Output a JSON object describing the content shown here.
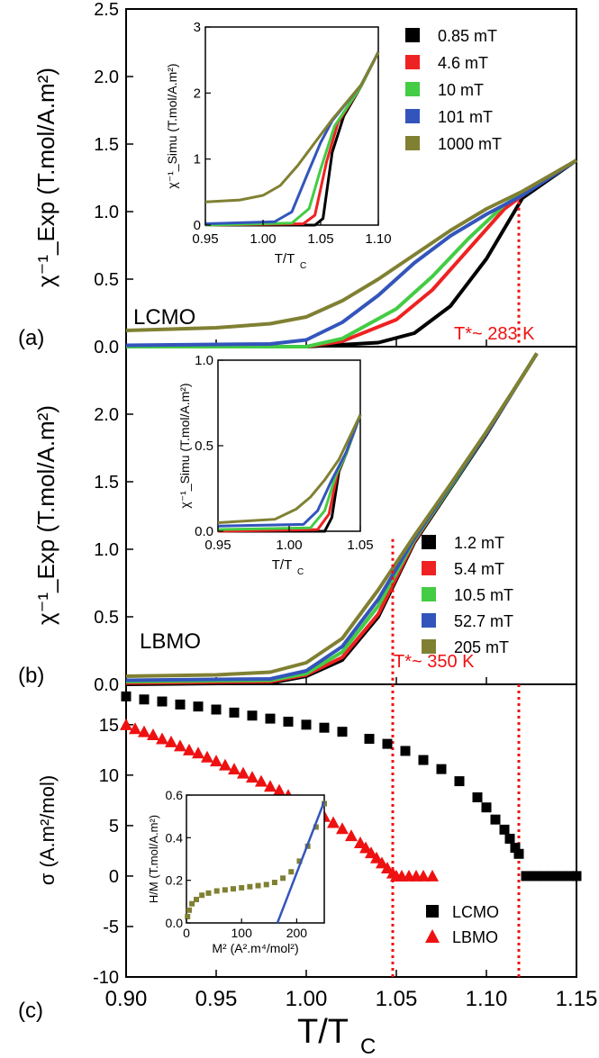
{
  "figure": {
    "x_title": "T/T",
    "x_title_sub": "C",
    "x_ticks": [
      "0.90",
      "0.95",
      "1.00",
      "1.05",
      "1.10",
      "1.15"
    ]
  },
  "chart_data": [
    {
      "id": "panel_a",
      "type": "line",
      "panel_label": "(a)",
      "material": "LCMO",
      "ylabel": "χ⁻¹_Exp (T.mol/A.m²)",
      "xlim": [
        0.9,
        1.15
      ],
      "ylim": [
        0.0,
        2.5
      ],
      "y_ticks": [
        "0.0",
        "0.5",
        "1.0",
        "1.5",
        "2.0",
        "2.5"
      ],
      "annotation": "T*~ 283 K",
      "marker_x": 1.118,
      "series": [
        {
          "name": "0.85 mT",
          "color": "#000000",
          "x": [
            0.9,
            1.0,
            1.04,
            1.06,
            1.08,
            1.1,
            1.12,
            1.15
          ],
          "y": [
            0.0,
            0.0,
            0.03,
            0.1,
            0.3,
            0.65,
            1.1,
            1.38
          ]
        },
        {
          "name": "4.6 mT",
          "color": "#ee2222",
          "x": [
            0.9,
            1.0,
            1.02,
            1.05,
            1.07,
            1.09,
            1.11,
            1.13,
            1.15
          ],
          "y": [
            0.0,
            0.0,
            0.04,
            0.2,
            0.42,
            0.72,
            1.02,
            1.22,
            1.38
          ]
        },
        {
          "name": "10 mT",
          "color": "#44cc44",
          "x": [
            0.9,
            1.0,
            1.02,
            1.05,
            1.07,
            1.09,
            1.11,
            1.13,
            1.15
          ],
          "y": [
            0.0,
            0.0,
            0.06,
            0.28,
            0.52,
            0.8,
            1.05,
            1.22,
            1.38
          ]
        },
        {
          "name": "101 mT",
          "color": "#3355bb",
          "x": [
            0.9,
            0.98,
            1.0,
            1.02,
            1.04,
            1.06,
            1.08,
            1.1,
            1.12,
            1.15
          ],
          "y": [
            0.01,
            0.02,
            0.05,
            0.18,
            0.38,
            0.62,
            0.82,
            0.98,
            1.12,
            1.38
          ]
        },
        {
          "name": "1000 mT",
          "color": "#808033",
          "x": [
            0.9,
            0.95,
            0.98,
            1.0,
            1.02,
            1.04,
            1.06,
            1.08,
            1.1,
            1.12,
            1.15
          ],
          "y": [
            0.12,
            0.14,
            0.17,
            0.22,
            0.34,
            0.5,
            0.68,
            0.86,
            1.02,
            1.15,
            1.38
          ]
        }
      ],
      "inset": {
        "type": "line",
        "ylabel": "χ⁻¹_Simu (T.mol/A.m²)",
        "xlabel": "T/T",
        "xlabel_sub": "C",
        "xlim": [
          0.95,
          1.1
        ],
        "ylim": [
          0,
          3
        ],
        "x_ticks": [
          "0.95",
          "1.00",
          "1.05",
          "1.10"
        ],
        "y_ticks": [
          "0",
          "1",
          "2",
          "3"
        ],
        "series": [
          {
            "name": "0.85 mT",
            "color": "#000000",
            "x": [
              0.95,
              1.045,
              1.052,
              1.06,
              1.07,
              1.085,
              1.1
            ],
            "y": [
              0.0,
              0.0,
              0.1,
              1.1,
              1.65,
              2.1,
              2.62
            ]
          },
          {
            "name": "4.6 mT",
            "color": "#ee2222",
            "x": [
              0.95,
              1.035,
              1.045,
              1.055,
              1.065,
              1.085,
              1.1
            ],
            "y": [
              0.0,
              0.02,
              0.15,
              0.95,
              1.55,
              2.1,
              2.62
            ]
          },
          {
            "name": "10 mT",
            "color": "#44cc44",
            "x": [
              0.95,
              1.025,
              1.04,
              1.05,
              1.062,
              1.085,
              1.1
            ],
            "y": [
              0.0,
              0.03,
              0.25,
              0.85,
              1.5,
              2.1,
              2.62
            ]
          },
          {
            "name": "101 mT",
            "color": "#3355bb",
            "x": [
              0.95,
              1.01,
              1.025,
              1.038,
              1.05,
              1.06,
              1.085,
              1.1
            ],
            "y": [
              0.02,
              0.05,
              0.2,
              0.75,
              1.25,
              1.58,
              2.12,
              2.62
            ]
          },
          {
            "name": "1000 mT",
            "color": "#808033",
            "x": [
              0.95,
              0.98,
              1.0,
              1.015,
              1.03,
              1.045,
              1.06,
              1.085,
              1.1
            ],
            "y": [
              0.35,
              0.38,
              0.45,
              0.6,
              0.9,
              1.25,
              1.6,
              2.12,
              2.62
            ]
          }
        ]
      }
    },
    {
      "id": "panel_b",
      "type": "line",
      "panel_label": "(b)",
      "material": "LBMO",
      "ylabel": "χ⁻¹_Exp (T.mol/A.m²)",
      "xlim": [
        0.9,
        1.15
      ],
      "ylim": [
        0.0,
        2.5
      ],
      "y_ticks": [
        "0.0",
        "0.5",
        "1.0",
        "1.5",
        "2.0"
      ],
      "annotation": "T*~ 350 K",
      "marker_x": 1.048,
      "series": [
        {
          "name": "1.2 mT",
          "color": "#000000",
          "x": [
            0.9,
            0.98,
            1.0,
            1.02,
            1.04,
            1.06,
            1.08,
            1.1,
            1.12,
            1.128
          ],
          "y": [
            0.0,
            0.01,
            0.06,
            0.18,
            0.5,
            1.05,
            1.45,
            1.85,
            2.28,
            2.45
          ]
        },
        {
          "name": "5.4 mT",
          "color": "#ee2222",
          "x": [
            0.9,
            0.98,
            1.0,
            1.02,
            1.04,
            1.06,
            1.08,
            1.1,
            1.12,
            1.128
          ],
          "y": [
            0.01,
            0.02,
            0.07,
            0.2,
            0.52,
            1.06,
            1.46,
            1.86,
            2.28,
            2.45
          ]
        },
        {
          "name": "10.5 mT",
          "color": "#44cc44",
          "x": [
            0.9,
            0.98,
            1.0,
            1.02,
            1.04,
            1.06,
            1.08,
            1.1,
            1.12,
            1.128
          ],
          "y": [
            0.02,
            0.03,
            0.08,
            0.24,
            0.58,
            1.07,
            1.46,
            1.86,
            2.28,
            2.45
          ]
        },
        {
          "name": "52.7 mT",
          "color": "#3355bb",
          "x": [
            0.9,
            0.98,
            1.0,
            1.02,
            1.04,
            1.06,
            1.08,
            1.1,
            1.12,
            1.128
          ],
          "y": [
            0.03,
            0.04,
            0.1,
            0.28,
            0.63,
            1.08,
            1.47,
            1.86,
            2.28,
            2.45
          ]
        },
        {
          "name": "205 mT",
          "color": "#808033",
          "x": [
            0.9,
            0.95,
            0.98,
            1.0,
            1.02,
            1.04,
            1.06,
            1.08,
            1.1,
            1.12,
            1.128
          ],
          "y": [
            0.06,
            0.07,
            0.09,
            0.16,
            0.34,
            0.7,
            1.1,
            1.48,
            1.87,
            2.28,
            2.45
          ]
        }
      ],
      "inset": {
        "type": "line",
        "ylabel": "χ⁻¹_Simu (T.mol/A.m²)",
        "xlabel": "T/T",
        "xlabel_sub": "C",
        "xlim": [
          0.95,
          1.05
        ],
        "ylim": [
          0.0,
          1.0
        ],
        "x_ticks": [
          "0.95",
          "1.00",
          "1.05"
        ],
        "y_ticks": [
          "0.0",
          "0.5",
          "1.0"
        ],
        "series": [
          {
            "name": "1.2 mT",
            "color": "#000000",
            "x": [
              0.95,
              1.025,
              1.03,
              1.035,
              1.04,
              1.05
            ],
            "y": [
              0.0,
              0.0,
              0.08,
              0.35,
              0.45,
              0.68
            ]
          },
          {
            "name": "5.4 mT",
            "color": "#ee2222",
            "x": [
              0.95,
              1.02,
              1.028,
              1.034,
              1.04,
              1.05
            ],
            "y": [
              0.0,
              0.01,
              0.1,
              0.34,
              0.45,
              0.68
            ]
          },
          {
            "name": "10.5 mT",
            "color": "#44cc44",
            "x": [
              0.95,
              1.015,
              1.025,
              1.033,
              1.04,
              1.05
            ],
            "y": [
              0.01,
              0.02,
              0.12,
              0.33,
              0.45,
              0.68
            ]
          },
          {
            "name": "52.7 mT",
            "color": "#3355bb",
            "x": [
              0.95,
              1.01,
              1.02,
              1.03,
              1.04,
              1.05
            ],
            "y": [
              0.03,
              0.04,
              0.12,
              0.3,
              0.46,
              0.68
            ]
          },
          {
            "name": "205 mT",
            "color": "#808033",
            "x": [
              0.95,
              0.99,
              1.005,
              1.015,
              1.025,
              1.035,
              1.05
            ],
            "y": [
              0.05,
              0.07,
              0.13,
              0.2,
              0.3,
              0.42,
              0.68
            ]
          }
        ]
      }
    },
    {
      "id": "panel_c",
      "type": "scatter",
      "panel_label": "(c)",
      "ylabel": "σ (A.m²/mol)",
      "xlim": [
        0.9,
        1.15
      ],
      "ylim": [
        -10,
        19
      ],
      "y_ticks": [
        "-10",
        "-5",
        "0",
        "5",
        "10",
        "15"
      ],
      "markers_x": [
        1.048,
        1.118
      ],
      "series": [
        {
          "name": "LCMO",
          "marker": "square",
          "color": "#000000",
          "x": [
            0.9,
            0.91,
            0.92,
            0.93,
            0.94,
            0.95,
            0.96,
            0.97,
            0.98,
            0.99,
            1.0,
            1.01,
            1.02,
            1.035,
            1.045,
            1.055,
            1.065,
            1.075,
            1.085,
            1.095,
            1.1,
            1.105,
            1.11,
            1.113,
            1.116,
            1.118,
            1.122,
            1.127,
            1.132,
            1.137,
            1.142,
            1.147,
            1.15
          ],
          "y": [
            17.8,
            17.5,
            17.3,
            17.0,
            16.8,
            16.5,
            16.2,
            15.9,
            15.6,
            15.3,
            15.0,
            14.7,
            14.3,
            13.6,
            13.1,
            12.4,
            11.5,
            10.6,
            9.4,
            7.8,
            6.8,
            5.6,
            4.6,
            3.7,
            2.8,
            2.2,
            0.0,
            0.0,
            0.0,
            0.0,
            0.0,
            0.0,
            0.0
          ]
        },
        {
          "name": "LBMO",
          "marker": "triangle",
          "color": "#ee1111",
          "x": [
            0.9,
            0.905,
            0.91,
            0.915,
            0.92,
            0.925,
            0.93,
            0.935,
            0.94,
            0.945,
            0.95,
            0.955,
            0.96,
            0.965,
            0.97,
            0.975,
            0.98,
            0.985,
            0.99,
            0.995,
            1.0,
            1.005,
            1.01,
            1.015,
            1.02,
            1.025,
            1.03,
            1.033,
            1.036,
            1.039,
            1.042,
            1.045,
            1.048,
            1.05,
            1.053,
            1.057,
            1.061,
            1.065,
            1.07
          ],
          "y": [
            15.0,
            14.6,
            14.3,
            14.0,
            13.6,
            13.3,
            12.9,
            12.5,
            12.2,
            11.8,
            11.4,
            11.0,
            10.6,
            10.2,
            9.8,
            9.4,
            8.9,
            8.5,
            8.0,
            7.5,
            7.0,
            6.5,
            5.9,
            5.3,
            4.7,
            4.0,
            3.3,
            2.8,
            2.3,
            1.8,
            1.3,
            0.8,
            0.3,
            0.0,
            0.0,
            0.0,
            0.0,
            0.0,
            0.0
          ]
        }
      ],
      "inset": {
        "type": "scatter",
        "ylabel": "H/M (T.mol/A.m²)",
        "xlabel": "M² (A².m⁴/mol²)",
        "xlim": [
          0,
          250
        ],
        "ylim": [
          0.0,
          0.6
        ],
        "x_ticks": [
          "0",
          "100",
          "200"
        ],
        "y_ticks": [
          "0.0",
          "0.2",
          "0.4",
          "0.6"
        ],
        "series": [
          {
            "name": "H/M",
            "marker": "square",
            "color": "#808033",
            "x": [
              2,
              5,
              10,
              18,
              28,
              40,
              55,
              70,
              85,
              100,
              115,
              130,
              145,
              160,
              175,
              190,
              205,
              220,
              235,
              250
            ],
            "y": [
              0.03,
              0.06,
              0.09,
              0.11,
              0.13,
              0.14,
              0.15,
              0.155,
              0.16,
              0.165,
              0.17,
              0.175,
              0.18,
              0.19,
              0.21,
              0.24,
              0.29,
              0.36,
              0.45,
              0.56
            ]
          },
          {
            "name": "linear fit",
            "marker": "line",
            "color": "#3355bb",
            "x": [
              165,
              250
            ],
            "y": [
              0.0,
              0.57
            ]
          }
        ]
      }
    }
  ]
}
